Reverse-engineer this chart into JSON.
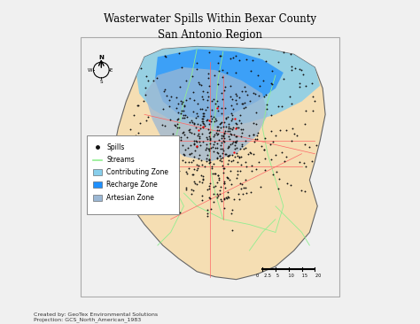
{
  "title_line1": "Wasterwater Spills Within Bexar County",
  "title_line2": "San Antonio Region",
  "title_fontsize": 8.5,
  "bg_color": "#f0f0f0",
  "map_bg": "#ffffff",
  "border_color": "#888888",
  "contributing_zone_color": "#87CEEB",
  "recharge_zone_color": "#1E90FF",
  "artesian_zone_color": "#9BB7D4",
  "county_color": "#F5DEB3",
  "county_edge_color": "#666666",
  "stream_color": "#90EE90",
  "road_color": "#FF6666",
  "spill_color": "#111111",
  "spill_size": 1.8,
  "legend_items": [
    "Spills",
    "Streams",
    "Contributing Zone",
    "Recharge Zone",
    "Artesian Zone"
  ],
  "legend_colors": [
    "#111111",
    "#90EE90",
    "#87CEEB",
    "#1E90FF",
    "#9BB7D4"
  ],
  "footer_line1": "Created by: GeoTex Environmental Solutions",
  "footer_line2": "Projection: GCS_North_American_1983"
}
